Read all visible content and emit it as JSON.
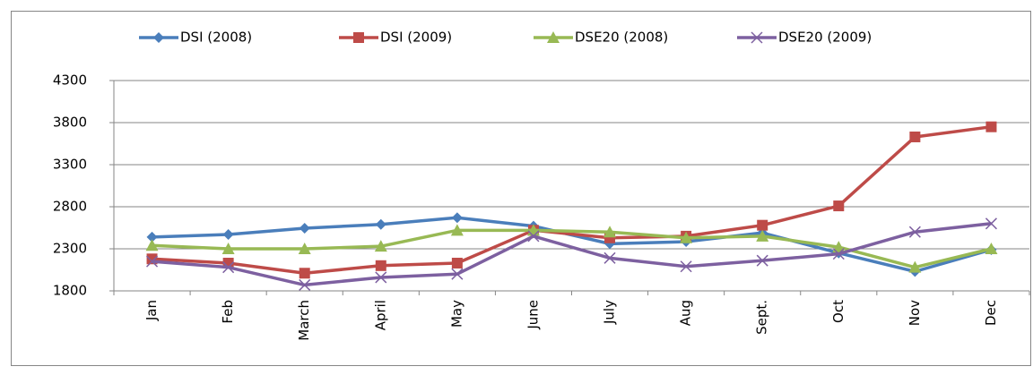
{
  "chart_data": {
    "type": "line",
    "categories": [
      "Jan",
      "Feb",
      "March",
      "April",
      "May",
      "June",
      "July",
      "Aug",
      "Sept.",
      "Oct",
      "Nov",
      "Dec"
    ],
    "series": [
      {
        "name": "DSI (2008)",
        "color": "#4a7ebb",
        "marker": "diamond",
        "values": [
          2440,
          2470,
          2545,
          2590,
          2670,
          2570,
          2360,
          2385,
          2490,
          2250,
          2030,
          2290
        ]
      },
      {
        "name": "DSI (2009)",
        "color": "#be4b48",
        "marker": "square",
        "values": [
          2180,
          2130,
          2010,
          2100,
          2130,
          2520,
          2430,
          2450,
          2580,
          2810,
          3630,
          3750
        ]
      },
      {
        "name": "DSE20 (2008)",
        "color": "#98b954",
        "marker": "triangle",
        "values": [
          2340,
          2300,
          2300,
          2330,
          2520,
          2520,
          2500,
          2430,
          2450,
          2320,
          2080,
          2300
        ]
      },
      {
        "name": "DSE20 (2009)",
        "color": "#7d60a0",
        "marker": "x",
        "values": [
          2150,
          2080,
          1870,
          1960,
          2000,
          2450,
          2190,
          2090,
          2160,
          2240,
          2500,
          2600
        ]
      }
    ],
    "ylim": [
      1800,
      4300
    ],
    "yticks": [
      1800,
      2300,
      2800,
      3300,
      3800,
      4300
    ],
    "grid": true,
    "legend": "top"
  }
}
